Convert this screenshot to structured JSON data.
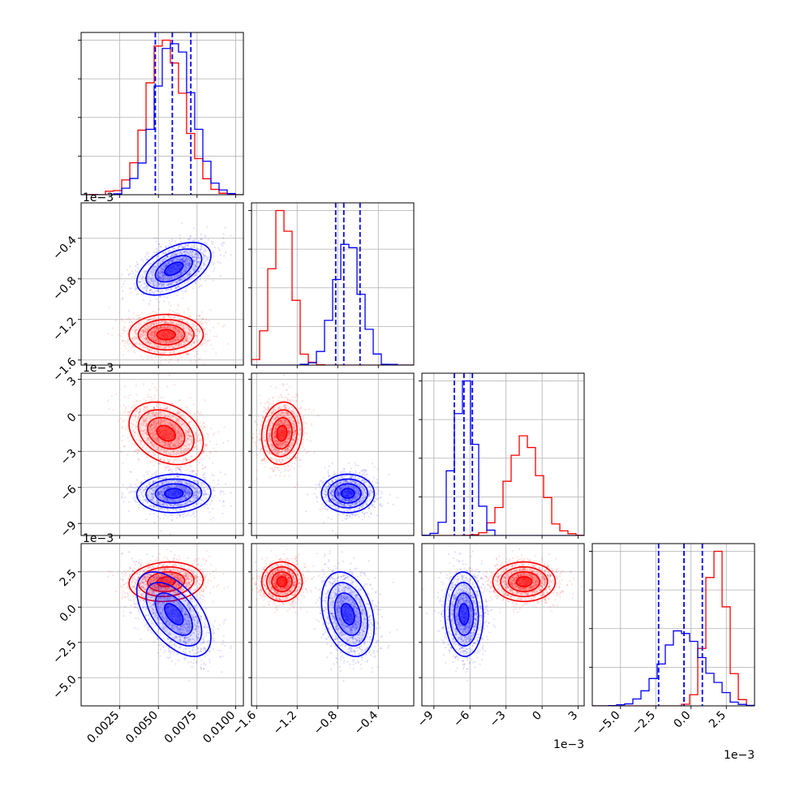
{
  "figure": {
    "type": "corner",
    "grid": true,
    "colors": {
      "red": "#ff0000",
      "blue": "#0000ff"
    }
  },
  "chart_data": {
    "type": "corner",
    "parameters": [
      {
        "range": [
          0.0,
          0.0105
        ],
        "ticks": [
          0.0025,
          0.005,
          0.0075,
          0.01
        ],
        "tick_labels": [
          "0.0025",
          "0.0050",
          "0.0075",
          "0.0100"
        ],
        "offset": ""
      },
      {
        "range": [
          -1.65,
          -0.05
        ],
        "ticks": [
          -1.6,
          -1.2,
          -0.8,
          -0.4
        ],
        "tick_labels": [
          "−1.6",
          "−1.2",
          "−0.8",
          "−0.4"
        ],
        "offset": "1e−3"
      },
      {
        "range": [
          -10.0,
          3.5
        ],
        "ticks": [
          -9,
          -6,
          -3,
          0,
          3
        ],
        "tick_labels": [
          "−9",
          "−6",
          "−3",
          "0",
          "3"
        ],
        "offset": "1e−3"
      },
      {
        "range": [
          -7.0,
          4.5
        ],
        "ticks": [
          -5.0,
          -2.5,
          0.0,
          2.5
        ],
        "tick_labels": [
          "−5.0",
          "−2.5",
          "0.0",
          "2.5"
        ],
        "offset": "1e−3"
      }
    ],
    "series": [
      {
        "color": "#ff0000",
        "means": [
          0.0055,
          -1.35,
          -1.5,
          1.8
        ],
        "sigmas": [
          0.0012,
          0.1,
          1.3,
          0.7
        ],
        "corr": [
          [
            1,
            0,
            -0.3,
            0.1
          ],
          [
            0,
            1,
            0.1,
            0
          ],
          [
            -0.3,
            0.1,
            1,
            0
          ],
          [
            0.1,
            0,
            0,
            1
          ]
        ]
      },
      {
        "color": "#0000ff",
        "means": [
          0.006,
          -0.7,
          -6.5,
          -0.5
        ],
        "sigmas": [
          0.0012,
          0.13,
          0.8,
          1.5
        ],
        "corr": [
          [
            1,
            0.5,
            0.05,
            -0.55
          ],
          [
            0.5,
            1,
            0,
            -0.3
          ],
          [
            0.05,
            0,
            1,
            -0.05
          ],
          [
            -0.55,
            -0.3,
            -0.05,
            1
          ]
        ]
      }
    ],
    "quantile_lines": {
      "color": "#0000ff",
      "values": [
        [
          0.0048,
          0.0059,
          0.0071
        ],
        [
          -0.82,
          -0.74,
          -0.58
        ],
        [
          -7.3,
          -6.5,
          -5.8
        ],
        [
          -2.3,
          -0.5,
          0.8
        ]
      ]
    }
  }
}
